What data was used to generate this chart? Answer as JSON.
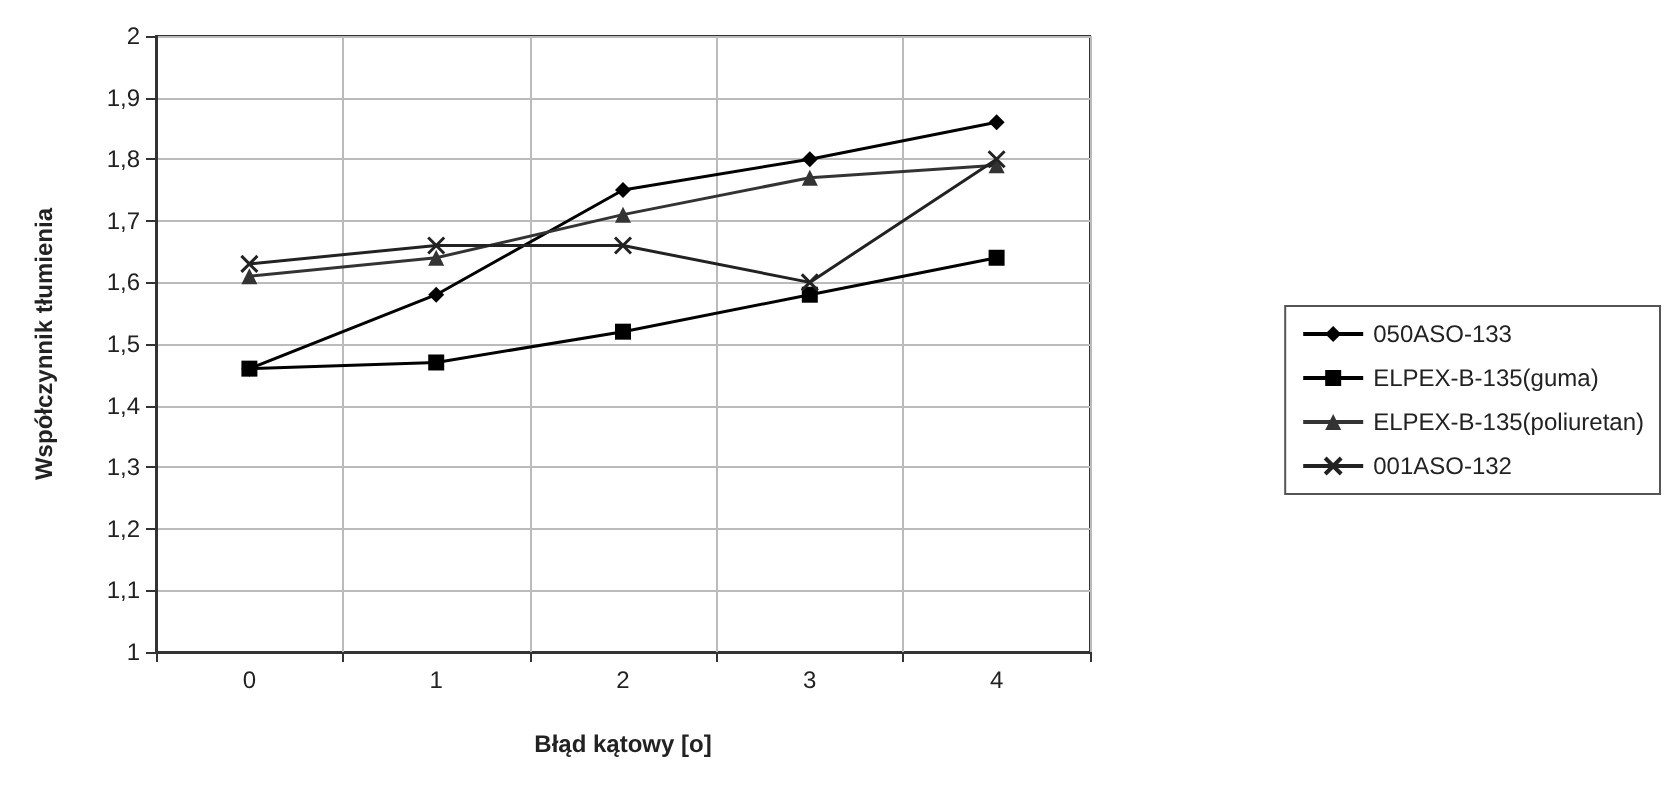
{
  "chart_data": {
    "type": "line",
    "xlabel": "Błąd kątowy [o]",
    "ylabel": "Współczynnik tłumienia",
    "categories": [
      "0",
      "1",
      "2",
      "3",
      "4"
    ],
    "series": [
      {
        "name": "050ASO-133",
        "color": "#000000",
        "marker": "diamond",
        "values": [
          1.46,
          1.58,
          1.75,
          1.8,
          1.86
        ]
      },
      {
        "name": "ELPEX-B-135(guma)",
        "color": "#000000",
        "marker": "square",
        "values": [
          1.46,
          1.47,
          1.52,
          1.58,
          1.64
        ]
      },
      {
        "name": "ELPEX-B-135(poliuretan)",
        "color": "#333333",
        "marker": "triangle",
        "values": [
          1.61,
          1.64,
          1.71,
          1.77,
          1.79
        ]
      },
      {
        "name": "001ASO-132",
        "color": "#222222",
        "marker": "cross",
        "values": [
          1.63,
          1.66,
          1.66,
          1.6,
          1.8
        ]
      }
    ],
    "ylim": [
      1,
      2
    ],
    "yticks": [
      1,
      {
        "value": 1.1,
        "label": "1,1"
      },
      {
        "value": 1.2,
        "label": "1,2"
      },
      {
        "value": 1.3,
        "label": "1,3"
      },
      {
        "value": 1.4,
        "label": "1,4"
      },
      {
        "value": 1.5,
        "label": "1,5"
      },
      {
        "value": 1.6,
        "label": "1,6"
      },
      {
        "value": 1.7,
        "label": "1,7"
      },
      {
        "value": 1.8,
        "label": "1,8"
      },
      {
        "value": 1.9,
        "label": "1,9"
      },
      2
    ],
    "grid": true,
    "legend": "right"
  }
}
